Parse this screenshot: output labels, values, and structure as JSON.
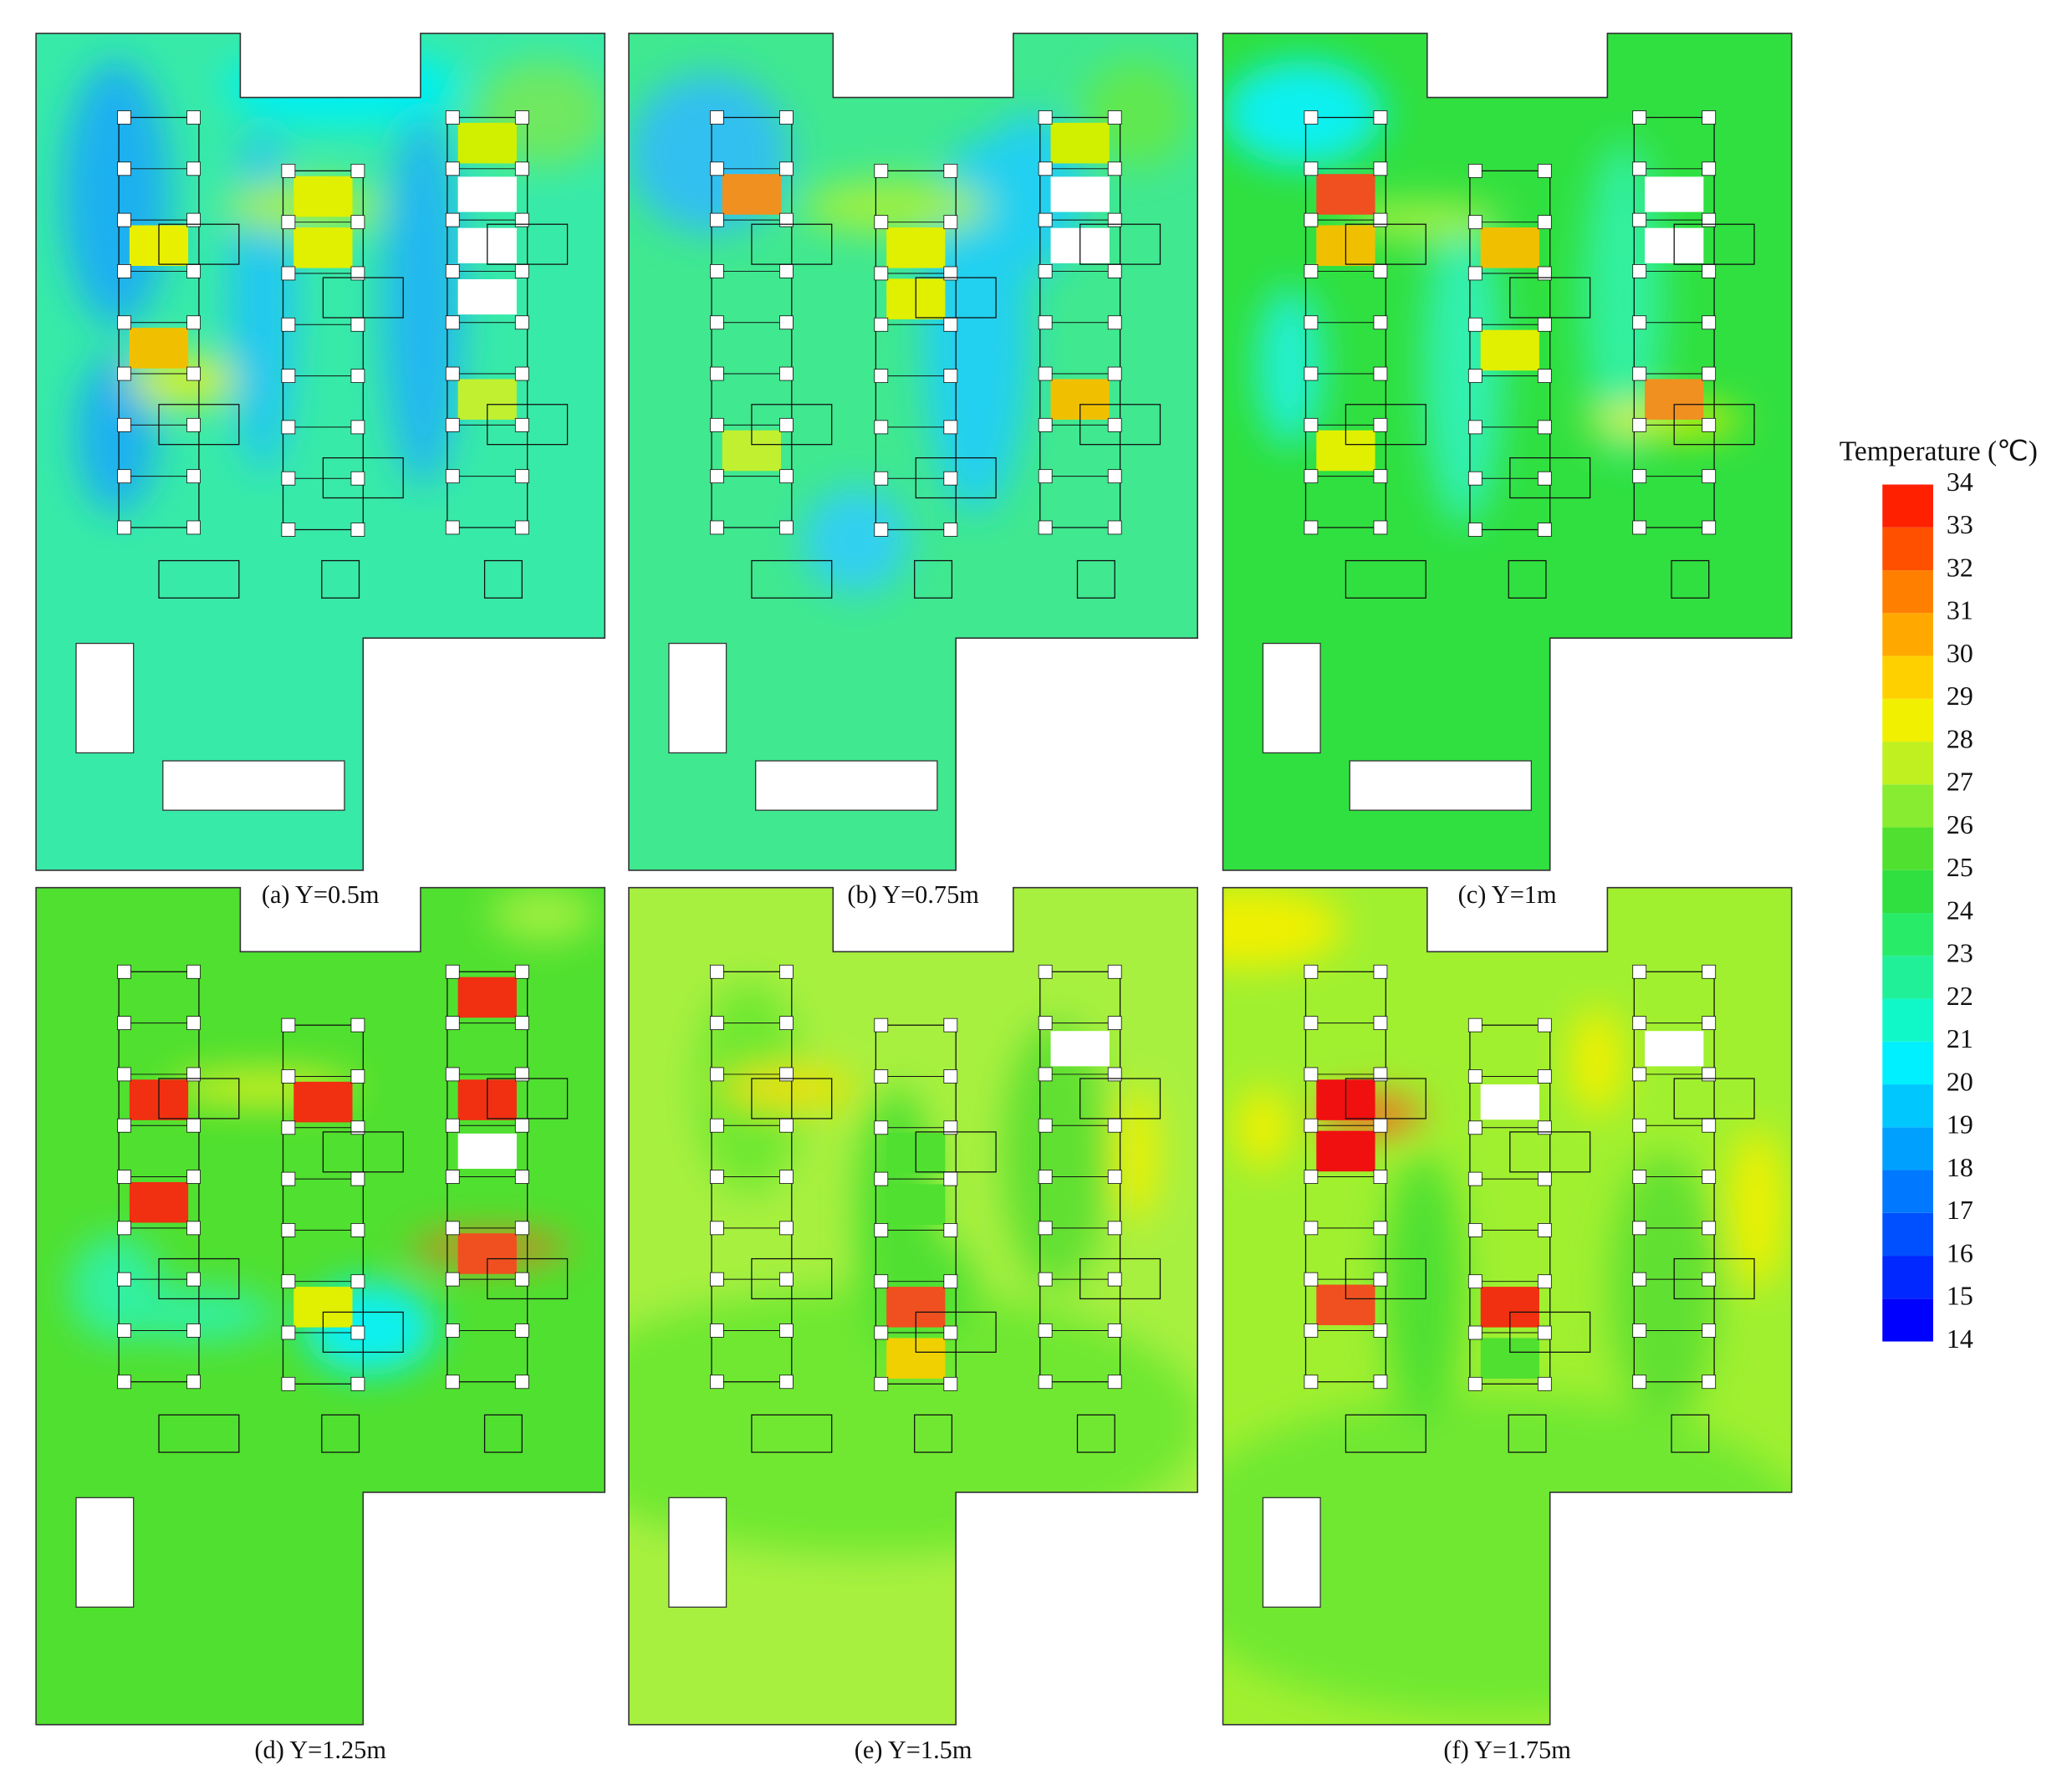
{
  "panels": [
    {
      "caption": "(a) Y=0.5m"
    },
    {
      "caption": "(b) Y=0.75m"
    },
    {
      "caption": "(c) Y=1m"
    },
    {
      "caption": "(d) Y=1.25m"
    },
    {
      "caption": "(e) Y=1.5m"
    },
    {
      "caption": "(f) Y=1.75m"
    }
  ],
  "colorbar": {
    "title": "Temperature (℃)",
    "ticks": [
      14,
      15,
      16,
      17,
      18,
      19,
      20,
      21,
      22,
      23,
      24,
      25,
      26,
      27,
      28,
      29,
      30,
      31,
      32,
      33,
      34
    ],
    "colors": [
      "#0000ff",
      "#0028ff",
      "#0050ff",
      "#0078ff",
      "#00a0ff",
      "#00c8ff",
      "#00f0ff",
      "#10f8c8",
      "#20f098",
      "#28ec68",
      "#30e040",
      "#50e030",
      "#88ec30",
      "#c0f020",
      "#f0f000",
      "#ffd000",
      "#ffa800",
      "#ff8000",
      "#ff5000",
      "#ff2000"
    ]
  }
}
